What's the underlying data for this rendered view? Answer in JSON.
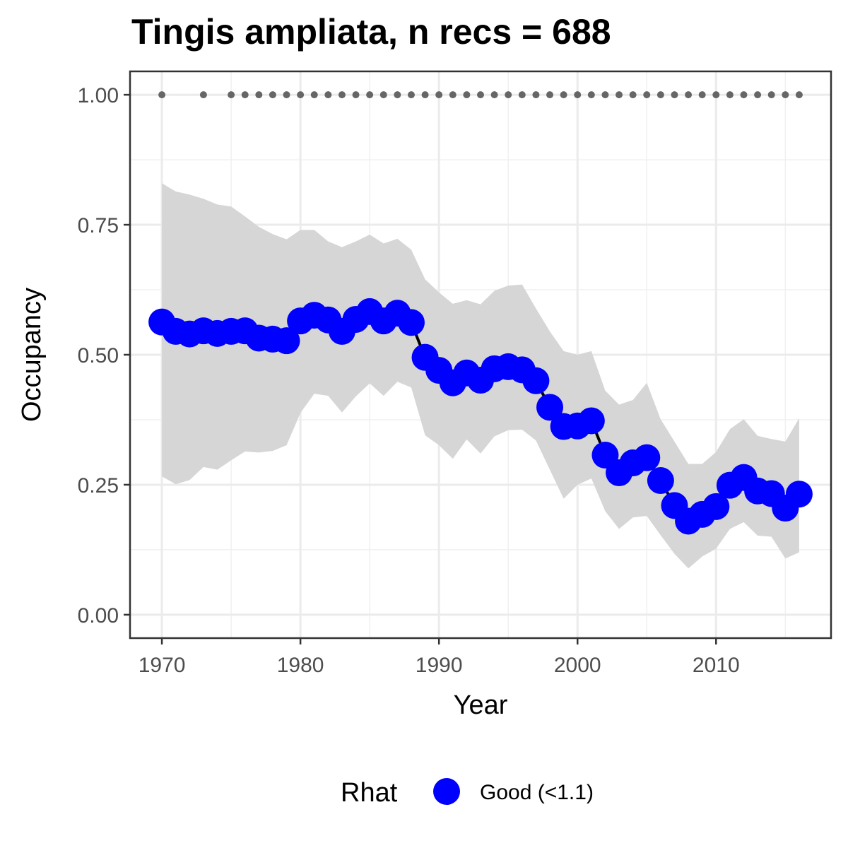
{
  "chart_data": {
    "type": "line",
    "title": "Tingis ampliata, n recs = 688",
    "xlabel": "Year",
    "ylabel": "Occupancy",
    "xlim": [
      1967.7,
      2018.3
    ],
    "ylim": [
      -0.045,
      1.045
    ],
    "x_ticks": [
      1970,
      1980,
      1990,
      2000,
      2010
    ],
    "x_tick_labels": [
      "1970",
      "1980",
      "1990",
      "2000",
      "2010"
    ],
    "y_ticks": [
      0,
      0.25,
      0.5,
      0.75,
      1.0
    ],
    "y_tick_labels": [
      "0.00",
      "0.25",
      "0.50",
      "0.75",
      "1.00"
    ],
    "grid": true,
    "legend": {
      "title": "Rhat",
      "position": "bottom",
      "items": [
        {
          "label": "Good (<1.1)",
          "color": "#0000ff"
        }
      ]
    },
    "colors": {
      "points": "#0000ff",
      "line": "#000000",
      "ribbon": "#d6d6d6",
      "record_dots": "#666666"
    },
    "x": [
      1970,
      1971,
      1972,
      1973,
      1974,
      1975,
      1976,
      1977,
      1978,
      1979,
      1980,
      1981,
      1982,
      1983,
      1984,
      1985,
      1986,
      1987,
      1988,
      1989,
      1990,
      1991,
      1992,
      1993,
      1994,
      1995,
      1996,
      1997,
      1998,
      1999,
      2000,
      2001,
      2002,
      2003,
      2004,
      2005,
      2006,
      2007,
      2008,
      2009,
      2010,
      2011,
      2012,
      2013,
      2014,
      2015,
      2016
    ],
    "series": [
      {
        "values": [
          0.563,
          0.545,
          0.54,
          0.546,
          0.541,
          0.545,
          0.546,
          0.532,
          0.53,
          0.527,
          0.565,
          0.576,
          0.567,
          0.545,
          0.568,
          0.583,
          0.565,
          0.58,
          0.562,
          0.495,
          0.47,
          0.446,
          0.465,
          0.451,
          0.473,
          0.477,
          0.471,
          0.45,
          0.399,
          0.362,
          0.363,
          0.373,
          0.307,
          0.273,
          0.292,
          0.302,
          0.258,
          0.21,
          0.18,
          0.193,
          0.208,
          0.249,
          0.264,
          0.238,
          0.233,
          0.205,
          0.232
        ],
        "lower": [
          0.266,
          0.251,
          0.259,
          0.284,
          0.279,
          0.297,
          0.314,
          0.312,
          0.315,
          0.326,
          0.388,
          0.425,
          0.421,
          0.389,
          0.42,
          0.445,
          0.421,
          0.448,
          0.437,
          0.345,
          0.326,
          0.3,
          0.337,
          0.31,
          0.343,
          0.355,
          0.356,
          0.335,
          0.279,
          0.223,
          0.25,
          0.262,
          0.199,
          0.165,
          0.187,
          0.19,
          0.153,
          0.117,
          0.089,
          0.112,
          0.127,
          0.165,
          0.178,
          0.152,
          0.15,
          0.108,
          0.12
        ],
        "upper": [
          0.83,
          0.814,
          0.808,
          0.8,
          0.789,
          0.785,
          0.766,
          0.746,
          0.732,
          0.722,
          0.74,
          0.74,
          0.718,
          0.707,
          0.718,
          0.731,
          0.714,
          0.723,
          0.702,
          0.645,
          0.62,
          0.598,
          0.605,
          0.597,
          0.623,
          0.633,
          0.635,
          0.589,
          0.545,
          0.507,
          0.5,
          0.507,
          0.431,
          0.404,
          0.413,
          0.446,
          0.376,
          0.333,
          0.29,
          0.29,
          0.313,
          0.357,
          0.376,
          0.344,
          0.338,
          0.333,
          0.378
        ]
      }
    ],
    "record_years": [
      1970,
      1973,
      1975,
      1976,
      1977,
      1978,
      1979,
      1980,
      1981,
      1982,
      1983,
      1984,
      1985,
      1986,
      1987,
      1988,
      1989,
      1990,
      1991,
      1992,
      1993,
      1994,
      1995,
      1996,
      1997,
      1998,
      1999,
      2000,
      2001,
      2002,
      2003,
      2004,
      2005,
      2006,
      2007,
      2008,
      2009,
      2010,
      2011,
      2012,
      2013,
      2014,
      2015,
      2016
    ],
    "record_y": 1.0
  }
}
